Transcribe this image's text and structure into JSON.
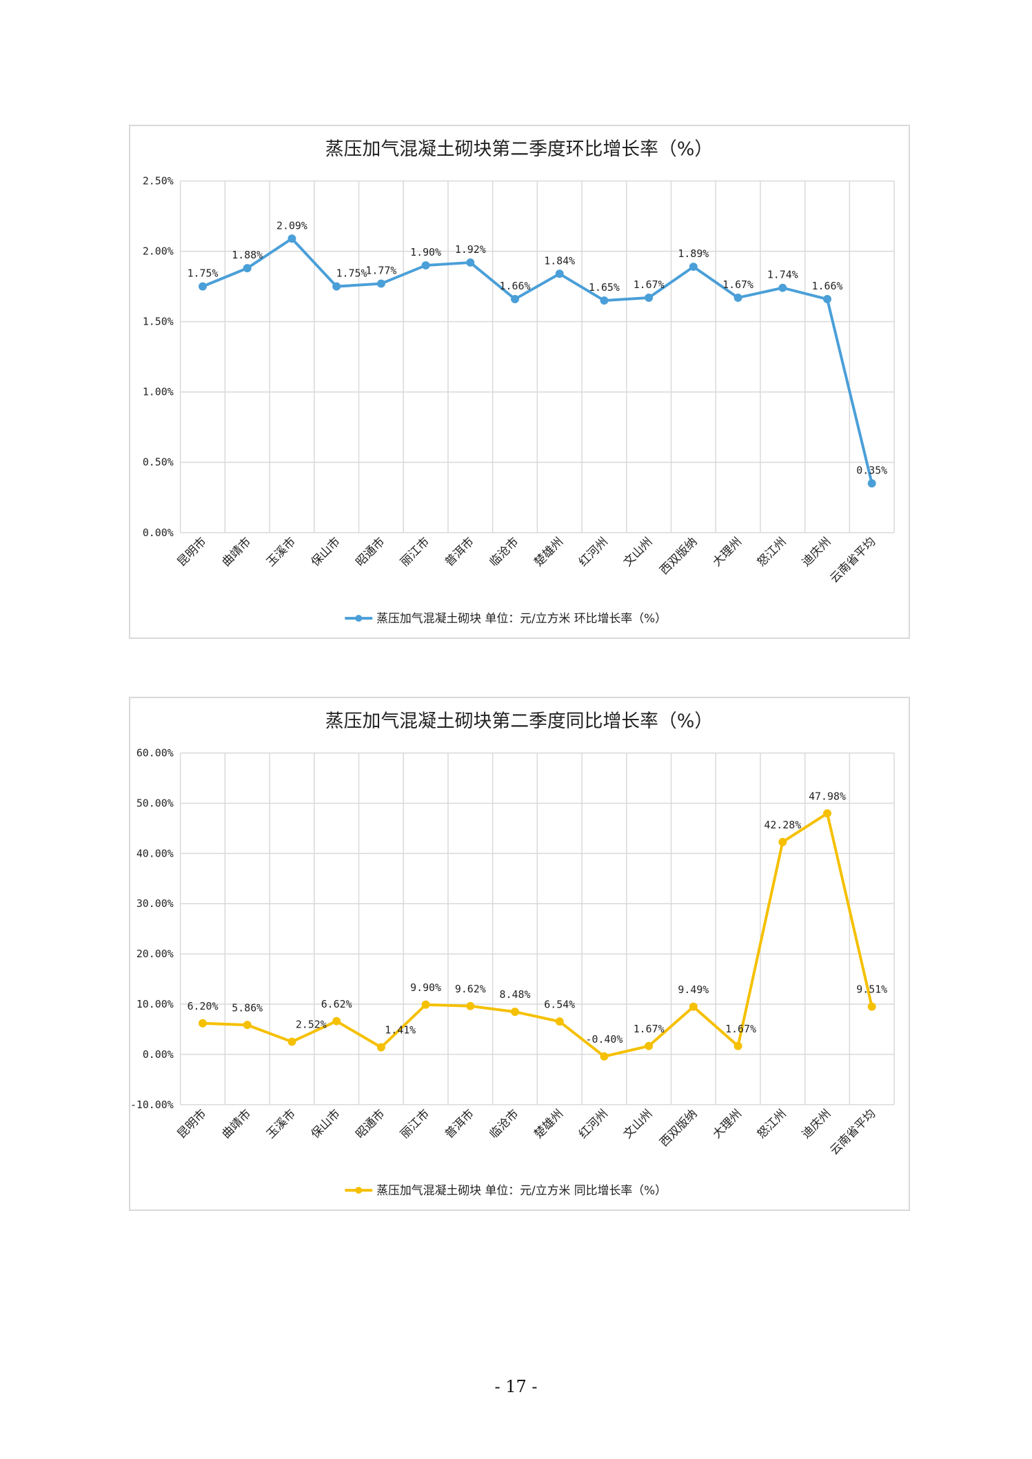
{
  "page": {
    "number": "- 17 -"
  },
  "chart_data": [
    {
      "type": "line",
      "title": "蒸压加气混凝土砌块第二季度环比增长率（%）",
      "categories": [
        "昆明市",
        "曲靖市",
        "玉溪市",
        "保山市",
        "昭通市",
        "丽江市",
        "普洱市",
        "临沧市",
        "楚雄州",
        "红河州",
        "文山州",
        "西双版纳",
        "大理州",
        "怒江州",
        "迪庆州",
        "云南省平均"
      ],
      "series": [
        {
          "name": "蒸压加气混凝土砌块 单位：元/立方米 环比增长率（%）",
          "values": [
            1.75,
            1.88,
            2.09,
            1.75,
            1.77,
            1.9,
            1.92,
            1.66,
            1.84,
            1.65,
            1.67,
            1.89,
            1.67,
            1.74,
            1.66,
            0.35
          ],
          "labels": [
            "1.75%",
            "1.88%",
            "2.09%",
            "1.75%",
            "1.77%",
            "1.90%",
            "1.92%",
            "1.66%",
            "1.84%",
            "1.65%",
            "1.67%",
            "1.89%",
            "1.67%",
            "1.74%",
            "1.66%",
            "0.35%"
          ],
          "color": "#4a9fd8"
        }
      ],
      "ylim": [
        0,
        2.5
      ],
      "yticks": [
        0,
        0.5,
        1.0,
        1.5,
        2.0,
        2.5
      ],
      "ytick_labels": [
        "0.00%",
        "0.50%",
        "1.00%",
        "1.50%",
        "2.00%",
        "2.50%"
      ],
      "xlabel": "",
      "ylabel": "",
      "grid": true,
      "legend": "bottom"
    },
    {
      "type": "line",
      "title": "蒸压加气混凝土砌块第二季度同比增长率（%）",
      "categories": [
        "昆明市",
        "曲靖市",
        "玉溪市",
        "保山市",
        "昭通市",
        "丽江市",
        "普洱市",
        "临沧市",
        "楚雄州",
        "红河州",
        "文山州",
        "西双版纳",
        "大理州",
        "怒江州",
        "迪庆州",
        "云南省平均"
      ],
      "series": [
        {
          "name": "蒸压加气混凝土砌块 单位：元/立方米 同比增长率（%）",
          "values": [
            6.2,
            5.86,
            2.52,
            6.62,
            1.41,
            9.9,
            9.62,
            8.48,
            6.54,
            -0.4,
            1.67,
            9.49,
            1.67,
            42.28,
            47.98,
            9.51
          ],
          "labels": [
            "6.20%",
            "5.86%",
            "2.52%",
            "6.62%",
            "1.41%",
            "9.90%",
            "9.62%",
            "8.48%",
            "6.54%",
            "-0.40%",
            "1.67%",
            "9.49%",
            "1.67%",
            "42.28%",
            "47.98%",
            "9.51%"
          ],
          "color": "#f5c000"
        }
      ],
      "ylim": [
        -10,
        60
      ],
      "yticks": [
        -10,
        0,
        10,
        20,
        30,
        40,
        50,
        60
      ],
      "ytick_labels": [
        "-10.00%",
        "0.00%",
        "10.00%",
        "20.00%",
        "30.00%",
        "40.00%",
        "50.00%",
        "60.00%"
      ],
      "xlabel": "",
      "ylabel": "",
      "grid": true,
      "legend": "bottom"
    }
  ]
}
